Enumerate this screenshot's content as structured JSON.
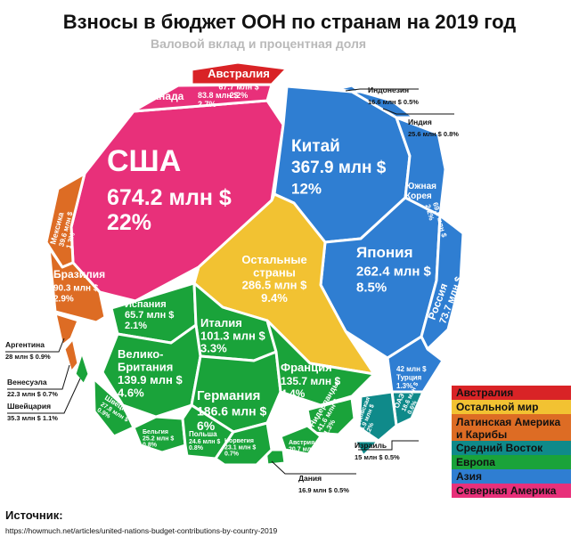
{
  "title": "Взносы в бюджет ООН по странам на 2019 год",
  "subtitle": "Валовой вклад и процентная доля",
  "colors": {
    "Австралия": "#d92326",
    "Остальной мир": "#f2c232",
    "Латинская Америка и Карибы": "#dd6c24",
    "Средний Восток": "#0f8a8a",
    "Европа": "#1aa33a",
    "Азия": "#2f7ed2",
    "Северная Америка": "#e8307a"
  },
  "chart_data": {
    "type": "voronoi-treemap",
    "title": "Взносы в бюджет ООН по странам на 2019 год",
    "subtitle": "Валовой вклад и процентная доля",
    "items": [
      {
        "country": "США",
        "value": "674.2 млн $",
        "share": "22%",
        "region": "Северная Америка"
      },
      {
        "country": "Канада",
        "value": "83.8 млн $",
        "share": "2.7%",
        "region": "Северная Америка"
      },
      {
        "country": "Австралия",
        "value": "67.7 млн $",
        "share": "2.2%",
        "region": "Австралия"
      },
      {
        "country": "Китай",
        "value": "367.9 млн $",
        "share": "12%",
        "region": "Азия"
      },
      {
        "country": "Япония",
        "value": "262.4 млн $",
        "share": "8.5%",
        "region": "Азия"
      },
      {
        "country": "Южная Корея",
        "value": "69.5 млн $",
        "share": "2.2%",
        "region": "Азия"
      },
      {
        "country": "Россия",
        "value": "73.7 млн $",
        "share": "2.4%",
        "region": "Азия"
      },
      {
        "country": "Турция",
        "value": "42 млн $",
        "share": "1.3%",
        "region": "Азия"
      },
      {
        "country": "Индонезия",
        "value": "16.6 млн $",
        "share": "0.5%",
        "region": "Азия"
      },
      {
        "country": "Индия",
        "value": "25.6 млн $",
        "share": "0.8%",
        "region": "Азия"
      },
      {
        "country": "ОАЭ",
        "value": "18.6 млн $",
        "share": "0.6%",
        "region": "Средний Восток"
      },
      {
        "country": "Саудовская Аравия",
        "value": "35.9 млн $",
        "share": "1.2%",
        "region": "Средний Восток"
      },
      {
        "country": "Израиль",
        "value": "15 млн $",
        "share": "0.5%",
        "region": "Средний Восток"
      },
      {
        "country": "Остальные страны",
        "value": "286.5 млн $",
        "share": "9.4%",
        "region": "Остальной мир"
      },
      {
        "country": "Мексика",
        "value": "39.6 млн $",
        "share": "1.3%",
        "region": "Латинская Америка и Карибы"
      },
      {
        "country": "Бразилия",
        "value": "90.3 млн $",
        "share": "2.9%",
        "region": "Латинская Америка и Карибы"
      },
      {
        "country": "Аргентина",
        "value": "28 млн $",
        "share": "0.9%",
        "region": "Латинская Америка и Карибы"
      },
      {
        "country": "Венесуэла",
        "value": "22.3 млн $",
        "share": "0.7%",
        "region": "Латинская Америка и Карибы"
      },
      {
        "country": "Испания",
        "value": "65.7 млн $",
        "share": "2.1%",
        "region": "Европа"
      },
      {
        "country": "Италия",
        "value": "101.3 млн $",
        "share": "3.3%",
        "region": "Европа"
      },
      {
        "country": "Велико-Британия",
        "value": "139.9 млн $",
        "share": "4.6%",
        "region": "Европа"
      },
      {
        "country": "Германия",
        "value": "186.6 млн $",
        "share": "6%",
        "region": "Европа"
      },
      {
        "country": "Франция",
        "value": "135.7 млн $",
        "share": "4.4%",
        "region": "Европа"
      },
      {
        "country": "Швейцария",
        "value": "35.3 млн $",
        "share": "1.1%",
        "region": "Европа"
      },
      {
        "country": "Швеция",
        "value": "27.8 млн $",
        "share": "0.9%",
        "region": "Европа"
      },
      {
        "country": "Бельгия",
        "value": "25.2 млн $",
        "share": "0.8%",
        "region": "Европа"
      },
      {
        "country": "Польша",
        "value": "24.6 млн $",
        "share": "0.8%",
        "region": "Европа"
      },
      {
        "country": "Норвегия",
        "value": "23.1 млн $",
        "share": "0.7%",
        "region": "Европа"
      },
      {
        "country": "Нидерланды",
        "value": "41.6 млн $",
        "share": "1.3%",
        "region": "Европа"
      },
      {
        "country": "Австрия",
        "value": "20.7 млн $",
        "share": "0.7%",
        "region": "Европа"
      },
      {
        "country": "Дания",
        "value": "16.9 млн $",
        "share": "0.5%",
        "region": "Европа"
      }
    ],
    "legend": [
      {
        "label": "Австралия",
        "color": "#d92326"
      },
      {
        "label": "Остальной мир",
        "color": "#f2c232"
      },
      {
        "label": "Латинская Америка и Карибы",
        "color": "#dd6c24"
      },
      {
        "label": "Средний Восток",
        "color": "#0f8a8a"
      },
      {
        "label": "Европа",
        "color": "#1aa33a"
      },
      {
        "label": "Азия",
        "color": "#2f7ed2"
      },
      {
        "label": "Северная Америка",
        "color": "#e8307a"
      }
    ]
  },
  "source": {
    "heading": "Источник:",
    "url": "https://howmuch.net/articles/united-nations-budget-contributions-by-country-2019"
  }
}
